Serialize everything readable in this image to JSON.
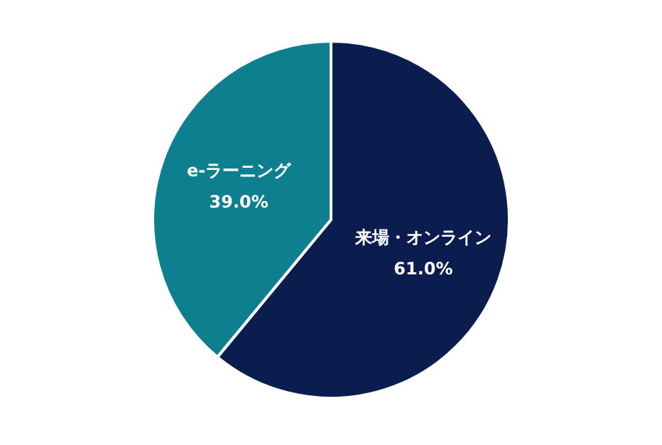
{
  "chart_data": {
    "type": "pie",
    "categories": [
      "来場・オンライン",
      "e-ラーニング"
    ],
    "values": [
      61.0,
      39.0
    ],
    "colors": [
      "#0b1d4f",
      "#0e7f8e"
    ],
    "value_labels": [
      "61.0%",
      "39.0%"
    ],
    "legend": false
  }
}
